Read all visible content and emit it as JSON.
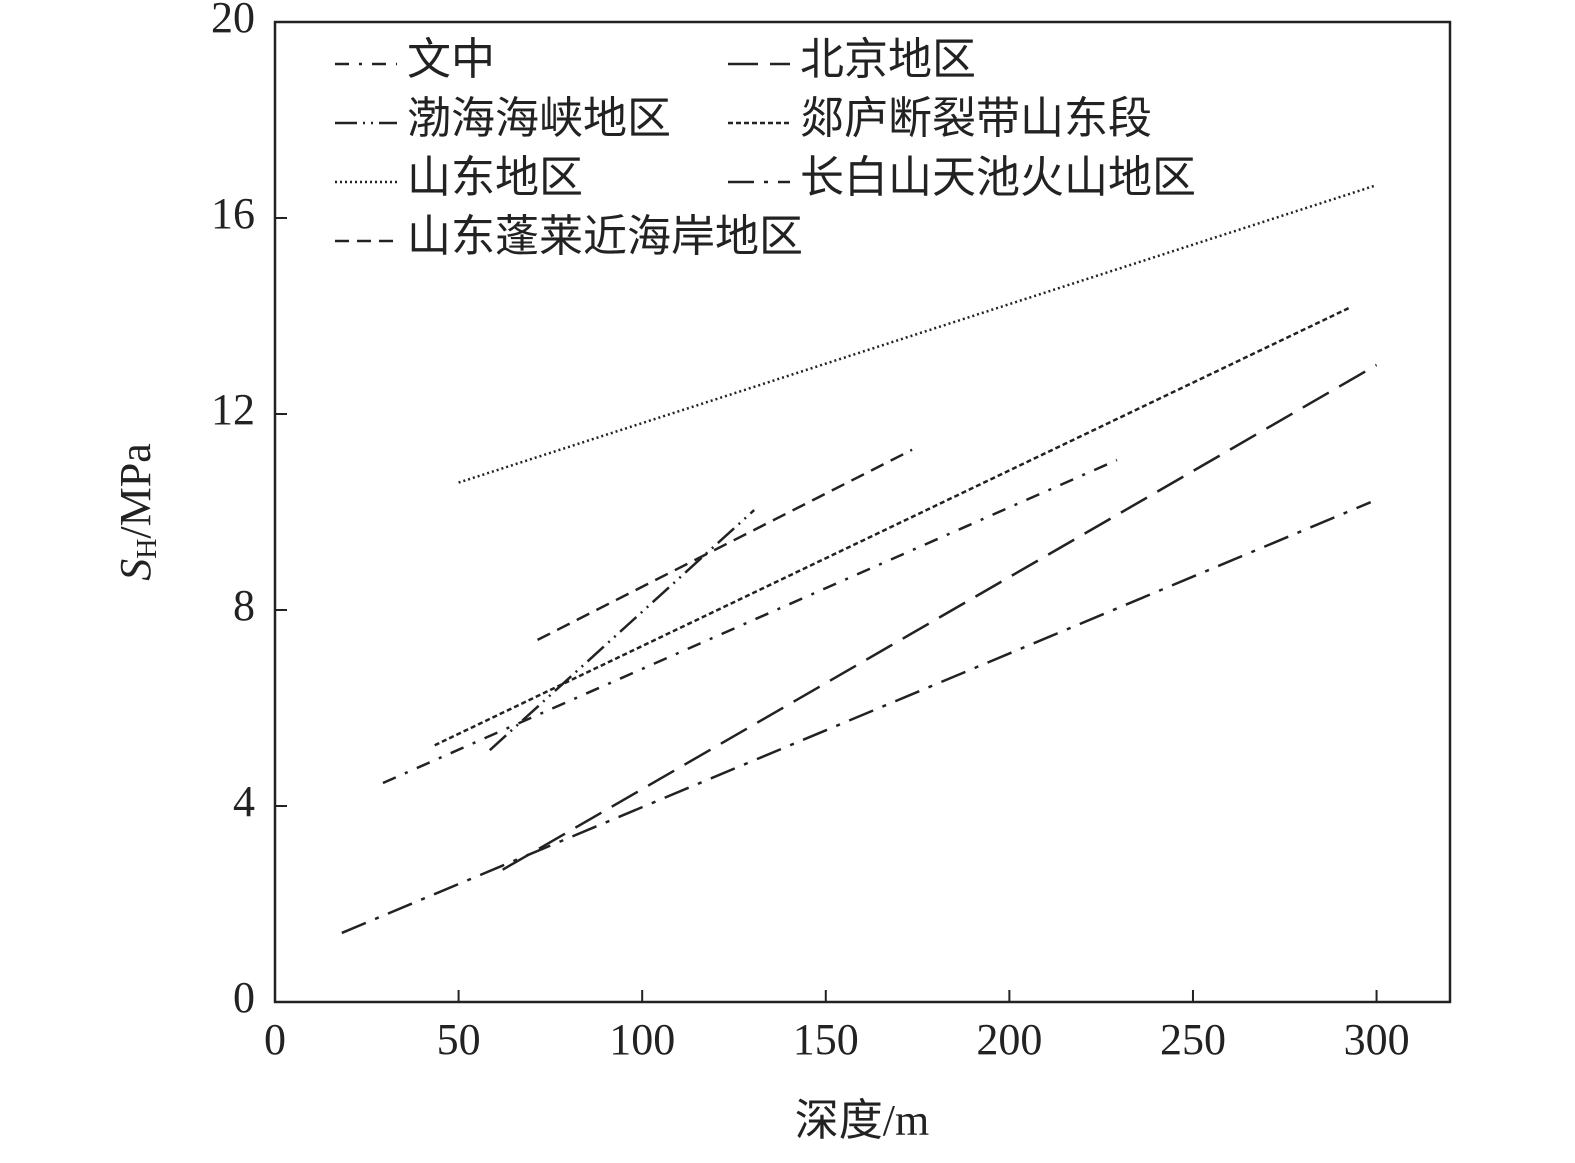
{
  "chart_data": {
    "type": "line",
    "xlabel": "深度/m",
    "ylabel": {
      "symbol": "S",
      "subscript": "H",
      "unit": "/MPa"
    },
    "xlim": [
      0,
      320
    ],
    "ylim": [
      0,
      20
    ],
    "xticks": [
      0,
      50,
      100,
      150,
      200,
      250,
      300
    ],
    "yticks": [
      0,
      4,
      8,
      12,
      16,
      20
    ],
    "series": [
      {
        "name": "文中",
        "color": "#222",
        "dash": "14,10,3,10",
        "x": [
          29.4,
          229.3
        ],
        "values": [
          4.47,
          11.06
        ]
      },
      {
        "name": "北京地区",
        "color": "#222",
        "dash": "30,12",
        "x": [
          62,
          300
        ],
        "values": [
          2.7,
          13
        ]
      },
      {
        "name": "渤海海峡地区",
        "color": "#222",
        "dash": "22,6,2,6,2,6",
        "x": [
          58.5,
          130.5
        ],
        "values": [
          5.14,
          10.04
        ]
      },
      {
        "name": "郯庐断裂带山东段",
        "color": "#222",
        "dash": "5,3",
        "x": [
          43.5,
          292.4
        ],
        "values": [
          5.24,
          14.16
        ]
      },
      {
        "name": "山东地区",
        "color": "#222",
        "dash": "2,3",
        "x": [
          50,
          300
        ],
        "values": [
          10.6,
          16.67
        ]
      },
      {
        "name": "长白山天池火山地区",
        "color": "#222",
        "dash": "26,10,4,10",
        "x": [
          18.2,
          298.4
        ],
        "values": [
          1.41,
          10.2
        ]
      },
      {
        "name": "山东蓬莱近海岸地区",
        "color": "#222",
        "dash": "14,8",
        "x": [
          71.5,
          173.5
        ],
        "values": [
          7.39,
          11.27
        ]
      }
    ]
  }
}
